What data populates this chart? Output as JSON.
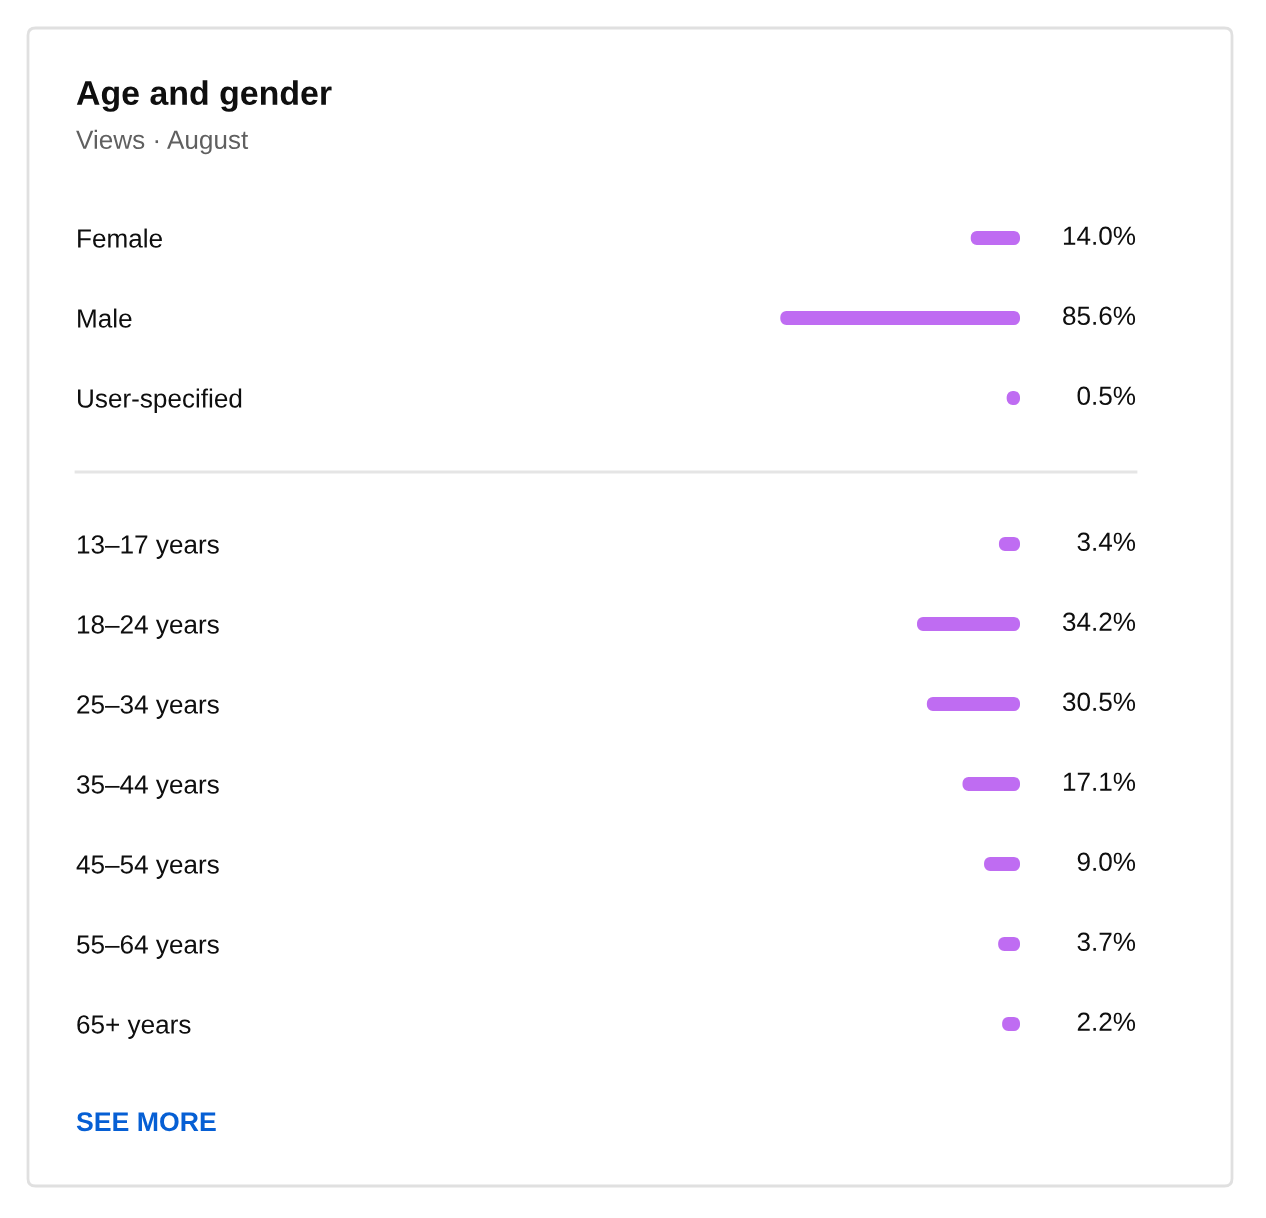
{
  "chart_data": [
    {
      "type": "bar",
      "orientation": "horizontal",
      "title": "Age and gender",
      "subtitle": "Views · August",
      "categories": [
        "Female",
        "Male",
        "User-specified"
      ],
      "values": [
        14.0,
        85.6,
        0.5
      ],
      "value_labels": [
        "14.0%",
        "85.6%",
        "0.5%"
      ],
      "color": "#bf6cf2",
      "tick_labels": "y"
    },
    {
      "type": "bar",
      "orientation": "horizontal",
      "categories": [
        "13–17 years",
        "18–24 years",
        "25–34 years",
        "35–44 years",
        "45–54 years",
        "55–64 years",
        "65+ years"
      ],
      "values": [
        3.4,
        34.2,
        30.5,
        17.1,
        9.0,
        3.7,
        2.2
      ],
      "value_labels": [
        "3.4%",
        "34.2%",
        "30.5%",
        "17.1%",
        "9.0%",
        "3.7%",
        "2.2%"
      ],
      "color": "#bf6cf2",
      "tick_labels": "y",
      "annotations": [
        "SEE MORE"
      ]
    }
  ]
}
